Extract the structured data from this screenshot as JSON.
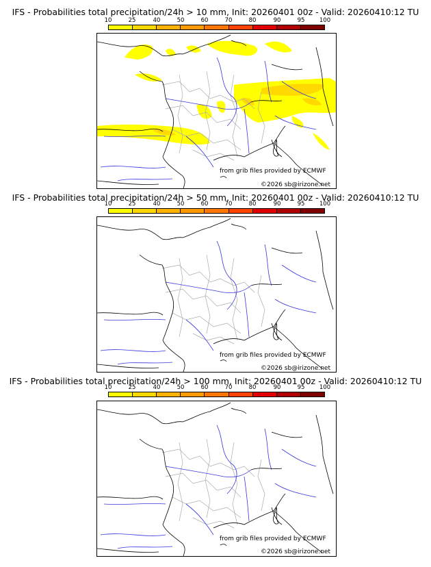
{
  "panels": [
    {
      "title": "IFS - Probabilities total precipitation/24h > 10 mm, Init: 20260401 00z - Valid: 20260410:12 TU",
      "threshold_mm": 10,
      "has_precip": true
    },
    {
      "title": "IFS - Probabilities total precipitation/24h > 50 mm, Init: 20260401 00z - Valid: 20260410:12 TU",
      "threshold_mm": 50,
      "has_precip": false
    },
    {
      "title": "IFS - Probabilities total precipitation/24h > 100 mm, Init: 20260401 00z - Valid: 20260410:12 TU",
      "threshold_mm": 100,
      "has_precip": false
    }
  ],
  "colorbar": {
    "ticks": [
      "10",
      "25",
      "40",
      "50",
      "60",
      "70",
      "80",
      "90",
      "95",
      "100"
    ],
    "colors": [
      "#ffff00",
      "#ffd700",
      "#ffb300",
      "#ff9900",
      "#ff7700",
      "#ff4400",
      "#e00000",
      "#b00000",
      "#800000"
    ]
  },
  "credits": {
    "source": "from grib files provided by ECMWF",
    "copyright": "©2026 sb@irizone.net"
  }
}
